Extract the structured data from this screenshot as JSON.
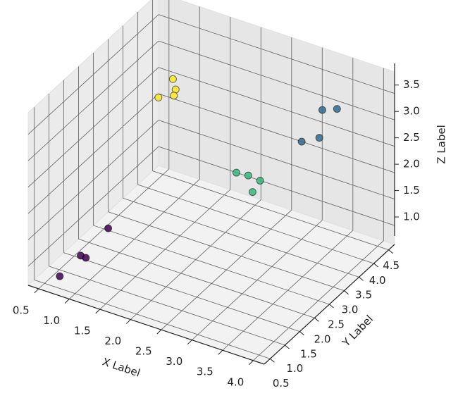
{
  "chart_data": {
    "type": "scatter3d",
    "xlabel": "X Label",
    "ylabel": "Y Label",
    "zlabel": "Z Label",
    "xlim": [
      0.33,
      4.18
    ],
    "ylim": [
      0.3,
      4.7
    ],
    "zlim": [
      0.64,
      3.91
    ],
    "xticks": [
      0.5,
      {
        "value": 1,
        "label": "1.0"
      },
      1.5,
      {
        "value": 2,
        "label": "2.0"
      },
      2.5,
      {
        "value": 3,
        "label": "3.0"
      },
      3.5,
      {
        "value": 4,
        "label": "4.0"
      }
    ],
    "yticks": [
      0.5,
      {
        "value": 1,
        "label": "1.0"
      },
      1.5,
      {
        "value": 2,
        "label": "2.0"
      },
      2.5,
      {
        "value": 3,
        "label": "3.0"
      },
      3.5,
      {
        "value": 4,
        "label": "4.0"
      },
      4.5
    ],
    "zticks": [
      {
        "value": 1,
        "label": "1.0"
      },
      1.5,
      {
        "value": 2,
        "label": "2.0"
      },
      2.5,
      {
        "value": 3,
        "label": "3.0"
      },
      3.5
    ],
    "grid": true,
    "series": [
      {
        "color": "#440154",
        "x": [
          0.7,
          0.82,
          0.84,
          0.93
        ],
        "y": [
          0.6,
          1.06,
          1.19,
          1.76
        ],
        "z": [
          0.8,
          1.0,
          0.9,
          1.2
        ]
      },
      {
        "color": "#31688e",
        "x": [
          3.05,
          3.28,
          3.17,
          2.94
        ],
        "y": [
          4.6,
          4.62,
          4.25,
          4.13
        ],
        "z": [
          2.8,
          2.9,
          2.5,
          2.4
        ]
      },
      {
        "color": "#35b779",
        "x": [
          2.15,
          2.33,
          2.47,
          2.39
        ],
        "y": [
          3.56,
          3.59,
          3.7,
          3.61
        ],
        "z": [
          1.8,
          1.8,
          1.7,
          1.5
        ]
      },
      {
        "color": "#fde725",
        "x": [
          1.41,
          1.44,
          1.43,
          1.27
        ],
        "y": [
          2.95,
          2.98,
          2.94,
          2.75
        ],
        "z": [
          3.6,
          3.4,
          3.3,
          3.3
        ]
      }
    ]
  }
}
